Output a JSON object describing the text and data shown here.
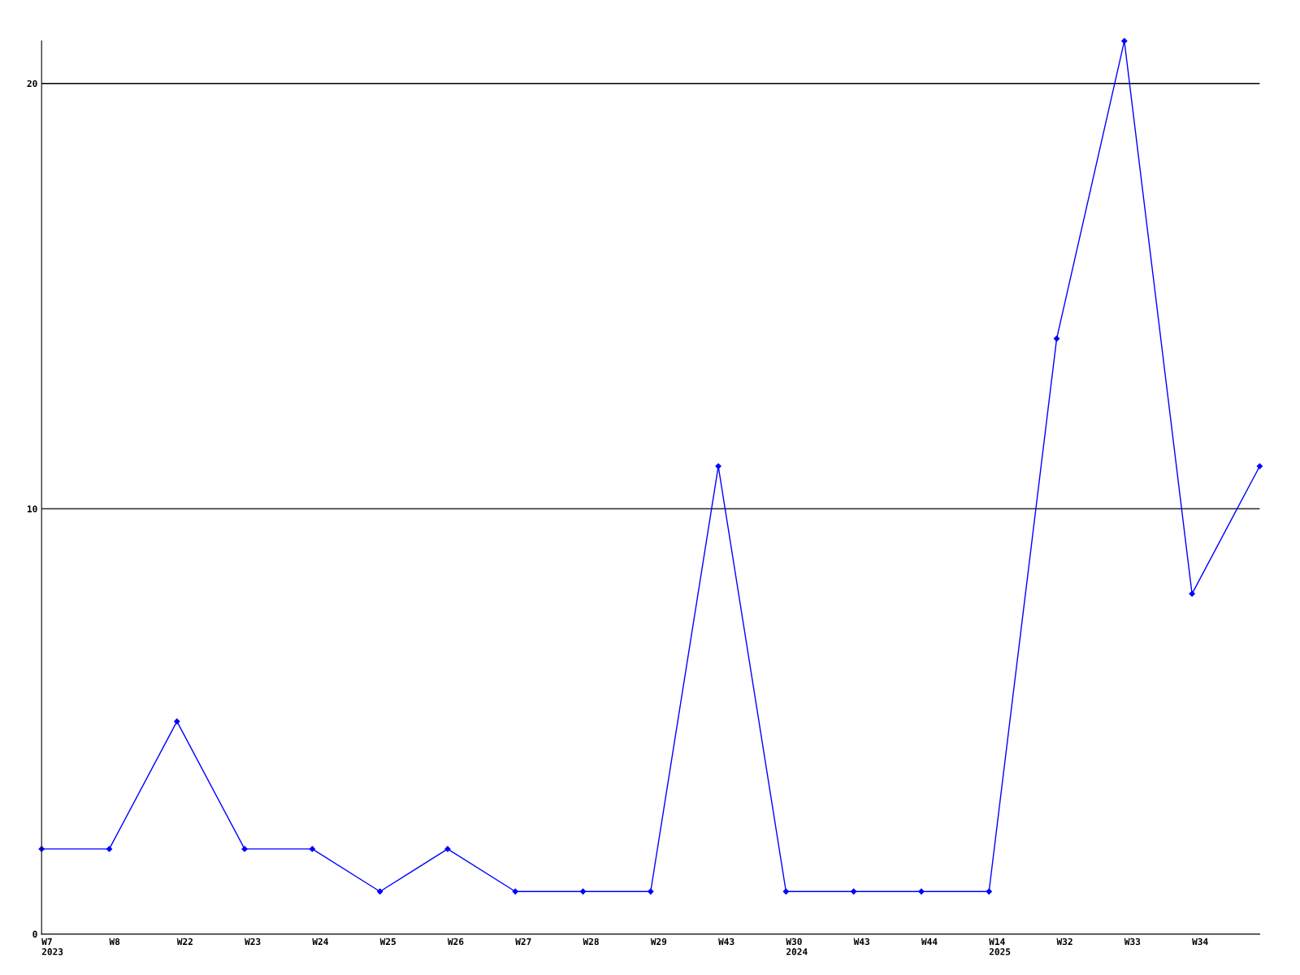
{
  "chart_data": {
    "type": "line",
    "categories": [
      "W7\n2023",
      "W8",
      "W22",
      "W23",
      "W24",
      "W25",
      "W26",
      "W27",
      "W28",
      "W29",
      "W43",
      "W30\n2024",
      "W43",
      "W44",
      "W14\n2025",
      "W32",
      "W33",
      "W34",
      null
    ],
    "series": [
      {
        "color": "#0000ff",
        "values": [
          2,
          2,
          5,
          2,
          2,
          1,
          2,
          1,
          1,
          1,
          11,
          1,
          1,
          1,
          1,
          14,
          21,
          8,
          11
        ]
      }
    ],
    "ylim": [
      0,
      21
    ],
    "yticks": [
      0,
      10,
      20
    ],
    "grid": "y",
    "marker": "diamond",
    "line_style": "solid",
    "legend": false
  }
}
